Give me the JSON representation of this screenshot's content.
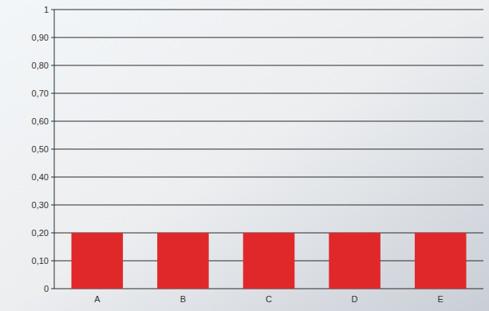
{
  "chart_data": {
    "type": "bar",
    "categories": [
      "A",
      "B",
      "C",
      "D",
      "E"
    ],
    "values": [
      0.2,
      0.2,
      0.2,
      0.2,
      0.2
    ],
    "color": "#e0282a",
    "ylim": [
      0,
      1
    ],
    "yticks": [
      0,
      {
        "value": 0.1,
        "label": "0,10"
      },
      {
        "value": 0.2,
        "label": "0,20"
      },
      {
        "value": 0.3,
        "label": "0,30"
      },
      {
        "value": 0.4,
        "label": "0,40"
      },
      {
        "value": 0.5,
        "label": "0,50"
      },
      {
        "value": 0.6,
        "label": "0,60"
      },
      {
        "value": 0.7,
        "label": "0,70"
      },
      {
        "value": 0.8,
        "label": "0,80"
      },
      {
        "value": 0.9,
        "label": "0,90"
      },
      1
    ],
    "grid": true
  }
}
